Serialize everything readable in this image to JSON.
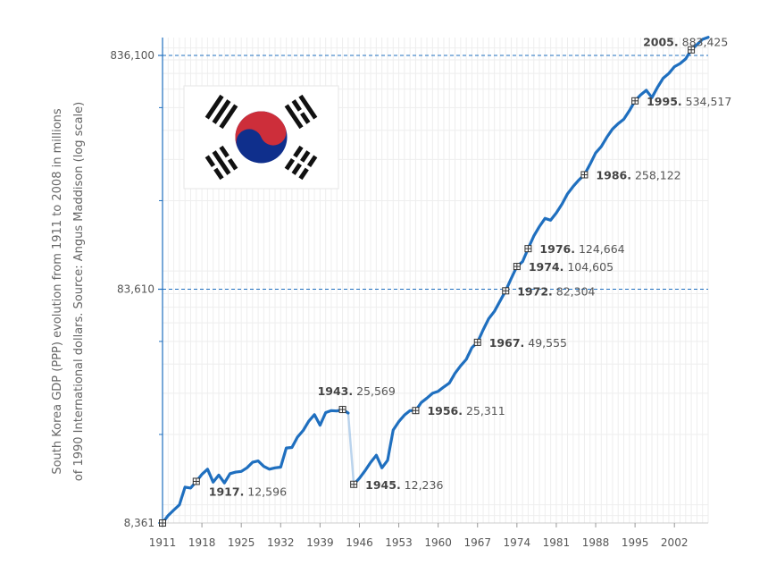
{
  "chart_data": {
    "type": "line",
    "title": "",
    "ylabel_lines": [
      "South Korea GDP (PPP) evolution from 1911 to 2008 in millions",
      "of 1990 International dollars. Source: Angus Maddison (log scale)"
    ],
    "xlabel": "",
    "y_scale": "log",
    "ylim": [
      8361,
      1000000
    ],
    "xlim": [
      1911,
      2008
    ],
    "x_ticks": [
      1911,
      1918,
      1925,
      1932,
      1939,
      1946,
      1953,
      1960,
      1967,
      1974,
      1981,
      1988,
      1995,
      2002
    ],
    "y_ticks": [
      {
        "value": 8361,
        "label": "8,361"
      },
      {
        "value": 83610,
        "label": "83,610"
      },
      {
        "value": 836100,
        "label": "836,100"
      }
    ],
    "reference_lines": [
      83610,
      836100
    ],
    "grid": true,
    "color": "#1f6fbf",
    "series": [
      {
        "segments": [
          {
            "x": [
              1911,
              1912,
              1913,
              1914,
              1915,
              1916,
              1917,
              1918,
              1919,
              1920,
              1921,
              1922,
              1923,
              1924,
              1925,
              1926,
              1927,
              1928,
              1929,
              1930,
              1931,
              1932,
              1933,
              1934,
              1935,
              1936,
              1937,
              1938,
              1939,
              1940,
              1941,
              1942,
              1943,
              1944
            ],
            "y": [
              8361,
              9000,
              9500,
              10000,
              11900,
              11800,
              12596,
              13500,
              14200,
              12500,
              13400,
              12400,
              13600,
              13800,
              13900,
              14400,
              15200,
              15400,
              14600,
              14200,
              14400,
              14500,
              17500,
              17600,
              19500,
              20800,
              22800,
              24300,
              21900,
              24800,
              25300,
              25200,
              25569,
              24700
            ]
          },
          {
            "x": [
              1945,
              1946,
              1947,
              1948,
              1949,
              1950,
              1951,
              1952,
              1953,
              1954,
              1955,
              1956,
              1957,
              1958,
              1959,
              1960,
              1961,
              1962,
              1963,
              1964,
              1965,
              1966,
              1967,
              1968,
              1969,
              1970,
              1971,
              1972,
              1973,
              1974,
              1975,
              1976,
              1977,
              1978,
              1979,
              1980,
              1981,
              1982,
              1983,
              1984,
              1985,
              1986,
              1987,
              1988,
              1989,
              1990,
              1991,
              1992,
              1993,
              1994,
              1995,
              1996,
              1997,
              1998,
              1999,
              2000,
              2001,
              2002,
              2003,
              2004,
              2005,
              2006,
              2007,
              2008
            ],
            "y": [
              12236,
              13000,
              14000,
              15200,
              16300,
              14400,
              15500,
              20900,
              22700,
              24200,
              25300,
              25311,
              27400,
              28600,
              30000,
              30600,
              31900,
              33200,
              36500,
              39300,
              41900,
              47000,
              49555,
              56000,
              62600,
              67200,
              74400,
              82304,
              93000,
              104605,
              109700,
              124664,
              141000,
              155000,
              168000,
              165000,
              177000,
              193000,
              214000,
              230000,
              245000,
              258122,
              286000,
              320000,
              341000,
              374000,
              405000,
              427000,
              446000,
              485000,
              534517,
              567000,
              593000,
              552000,
              611000,
              668000,
              700000,
              748000,
              772000,
              808000,
              883425,
              930000,
              980000,
              1000000
            ]
          }
        ],
        "connector": {
          "from": {
            "x": 1944,
            "y": 24700
          },
          "to": {
            "x": 1945,
            "y": 12236
          }
        }
      }
    ],
    "annotations": [
      {
        "year": 1917,
        "value": 12596,
        "year_label": "1917.",
        "value_label": "12,596",
        "side": "below-right"
      },
      {
        "year": 1943,
        "value": 25569,
        "year_label": "1943.",
        "value_label": "25,569",
        "side": "above-left"
      },
      {
        "year": 1945,
        "value": 12236,
        "year_label": "1945.",
        "value_label": "12,236",
        "side": "right"
      },
      {
        "year": 1956,
        "value": 25311,
        "year_label": "1956.",
        "value_label": "25,311",
        "side": "right"
      },
      {
        "year": 1967,
        "value": 49555,
        "year_label": "1967.",
        "value_label": "49,555",
        "side": "right"
      },
      {
        "year": 1972,
        "value": 82304,
        "year_label": "1972.",
        "value_label": "82,304",
        "side": "right"
      },
      {
        "year": 1974,
        "value": 104605,
        "year_label": "1974.",
        "value_label": "104,605",
        "side": "right"
      },
      {
        "year": 1976,
        "value": 124664,
        "year_label": "1976.",
        "value_label": "124,664",
        "side": "right"
      },
      {
        "year": 1986,
        "value": 258122,
        "year_label": "1986.",
        "value_label": "258,122",
        "side": "right"
      },
      {
        "year": 1995,
        "value": 534517,
        "year_label": "1995.",
        "value_label": "534,517",
        "side": "right"
      },
      {
        "year": 2005,
        "value": 883425,
        "year_label": "2005.",
        "value_label": "883,425",
        "side": "left"
      }
    ],
    "image": {
      "name": "south-korea-flag",
      "colors": {
        "red": "#cd2e3a",
        "blue": "#0f2f8c",
        "black": "#111111"
      }
    }
  }
}
